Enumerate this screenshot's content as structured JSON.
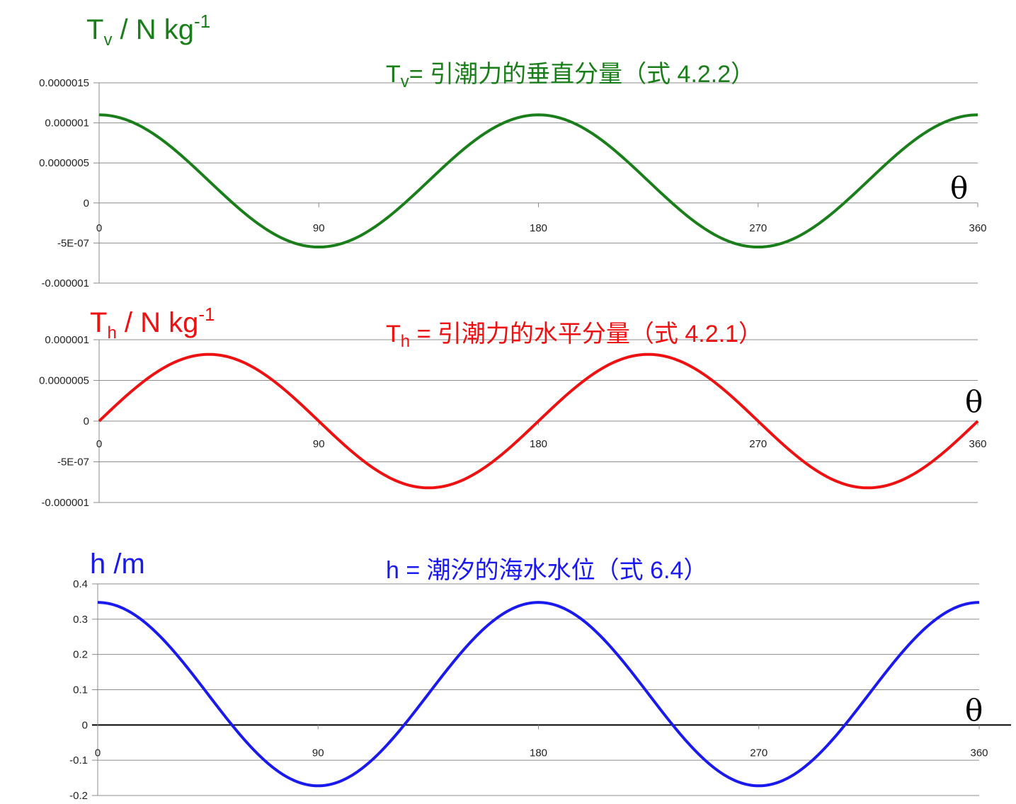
{
  "colors": {
    "green": "#1a7f1a",
    "red": "#ee1111",
    "blue": "#1a1aee",
    "grid": "#8c8c8c"
  },
  "chart_data": [
    {
      "type": "line",
      "ylabel": {
        "base": "T",
        "sub": "v",
        "rest": " / N kg",
        "sup": "-1"
      },
      "title": {
        "base": "T",
        "sub": "v",
        "rest": "=  引潮力的垂直分量（式  4.2.2）"
      },
      "xlabel": "θ",
      "xlim": [
        0,
        360
      ],
      "ylim": [
        -1e-06,
        1.5e-06
      ],
      "x_ticks": [
        "0",
        "90",
        "180",
        "270",
        "360"
      ],
      "y_ticks": [
        "0.0000015",
        "0.000001",
        "0.0000005",
        "0",
        "-5E-07",
        "-0.000001"
      ],
      "series": [
        {
          "color": "#1a7f1a",
          "function": "a*cos(2x)+b",
          "amplitude": 8.25e-07,
          "offset": 2.75e-07,
          "x": [
            0,
            45,
            90,
            135,
            180,
            225,
            270,
            315,
            360
          ],
          "values": [
            1.1e-06,
            2.75e-07,
            -5.5e-07,
            2.75e-07,
            1.1e-06,
            2.75e-07,
            -5.5e-07,
            2.75e-07,
            1.1e-06
          ]
        }
      ]
    },
    {
      "type": "line",
      "ylabel": {
        "base": "T",
        "sub": "h",
        "rest": " / N kg",
        "sup": "-1"
      },
      "title": {
        "base": "T",
        "sub": "h",
        "rest": " =  引潮力的水平分量（式  4.2.1）"
      },
      "xlabel": "θ",
      "xlim": [
        0,
        360
      ],
      "ylim": [
        -1e-06,
        1e-06
      ],
      "x_ticks": [
        "0",
        "90",
        "180",
        "270",
        "360"
      ],
      "y_ticks": [
        "0.000001",
        "0.0000005",
        "0",
        "-5E-07",
        "-0.000001"
      ],
      "series": [
        {
          "color": "#ee1111",
          "function": "a*sin(2x)",
          "amplitude": 8.2e-07,
          "x": [
            0,
            45,
            90,
            135,
            180,
            225,
            270,
            315,
            360
          ],
          "values": [
            0,
            8.2e-07,
            0,
            -8.2e-07,
            0,
            8.2e-07,
            0,
            -8.2e-07,
            0
          ]
        }
      ]
    },
    {
      "type": "line",
      "ylabel": {
        "base": "h /m",
        "sub": "",
        "rest": "",
        "sup": ""
      },
      "title": {
        "base": "h",
        "sub": "",
        "rest": " =  潮汐的海水水位（式  6.4）"
      },
      "xlabel": "θ",
      "xlim": [
        0,
        360
      ],
      "ylim": [
        -0.2,
        0.4
      ],
      "x_ticks": [
        "0",
        "90",
        "180",
        "270",
        "360"
      ],
      "y_ticks": [
        "0.4",
        "0.3",
        "0.2",
        "0.1",
        "0",
        "-0.1",
        "-0.2"
      ],
      "series": [
        {
          "color": "#1a1aee",
          "function": "a*cos(2x)+b",
          "amplitude": 0.26,
          "offset": 0.0875,
          "x": [
            0,
            45,
            90,
            135,
            180,
            225,
            270,
            315,
            360
          ],
          "values": [
            0.35,
            0.0875,
            -0.175,
            0.0875,
            0.35,
            0.0875,
            -0.175,
            0.0875,
            0.35
          ]
        }
      ]
    }
  ]
}
